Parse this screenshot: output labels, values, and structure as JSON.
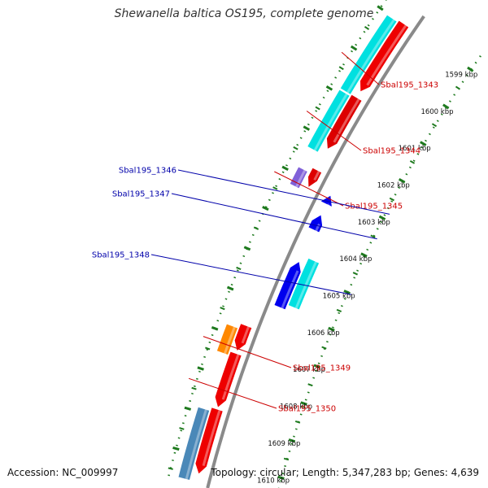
{
  "title": "Shewanella baltica OS195, complete genome",
  "accession": "Accession: NC_009997",
  "topology": "Topology: circular; Length: 5,347,283 bp; Genes: 4,639",
  "colors": {
    "backbone": "#8a8a8a",
    "tick": "#1e7a1e",
    "forward_label": "#cc0000",
    "reverse_label": "#0000aa"
  },
  "ticks": [
    {
      "label": "1599 kbp",
      "kbp": 1599
    },
    {
      "label": "1600 kbp",
      "kbp": 1600
    },
    {
      "label": "1601 kbp",
      "kbp": 1601
    },
    {
      "label": "1602 kbp",
      "kbp": 1602
    },
    {
      "label": "1603 kbp",
      "kbp": 1603
    },
    {
      "label": "1604 kbp",
      "kbp": 1604
    },
    {
      "label": "1605 kbp",
      "kbp": 1605
    },
    {
      "label": "1606 kbp",
      "kbp": 1606
    },
    {
      "label": "1607 kbp",
      "kbp": 1607
    },
    {
      "label": "1608 kbp",
      "kbp": 1608
    },
    {
      "label": "1609 kbp",
      "kbp": 1609
    },
    {
      "label": "1610 kbp",
      "kbp": 1610
    }
  ],
  "genes": [
    {
      "name": "Sbal195_1343",
      "strand": "forward"
    },
    {
      "name": "Sbal195_1344",
      "strand": "forward"
    },
    {
      "name": "Sbal195_1345",
      "strand": "forward"
    },
    {
      "name": "Sbal195_1346",
      "strand": "reverse"
    },
    {
      "name": "Sbal195_1347",
      "strand": "reverse"
    },
    {
      "name": "Sbal195_1348",
      "strand": "reverse"
    },
    {
      "name": "Sbal195_1349",
      "strand": "forward"
    },
    {
      "name": "Sbal195_1350",
      "strand": "forward"
    }
  ]
}
